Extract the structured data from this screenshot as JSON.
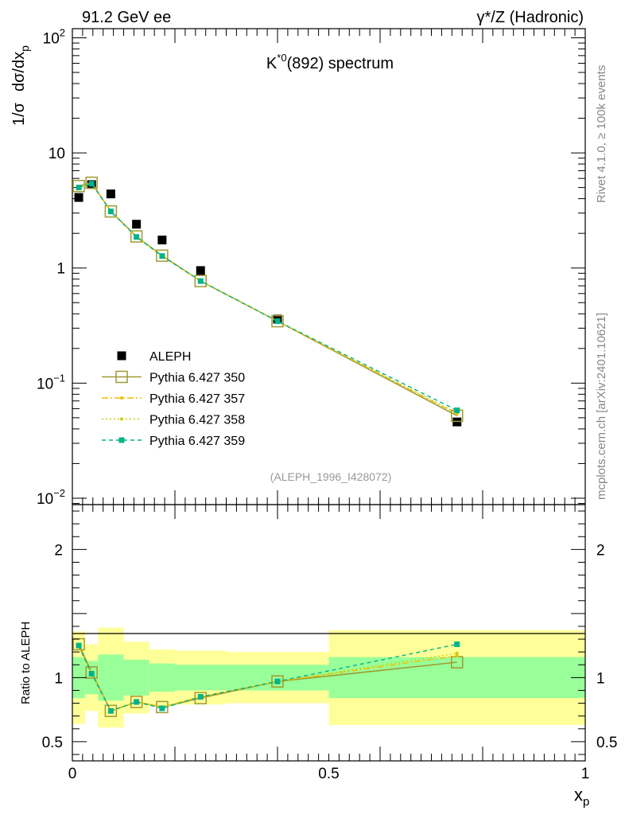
{
  "header": {
    "left_label": "91.2 GeV ee",
    "right_label": "γ*/Z (Hadronic)",
    "side_label_top": "Rivet 4.1.0, ≥ 100k events",
    "side_label_bottom": "mcplots.cern.ch [arXiv:2401.10621]"
  },
  "colors": {
    "data": "#000000",
    "mc350": "#a09a33",
    "mc357": "#f0c000",
    "mc358": "#cccc00",
    "mc359": "#00b38a",
    "band_inner": "#99ff99",
    "band_outer": "#ffff99"
  },
  "chart_data": [
    {
      "type": "scatter",
      "title": "K*0(892) spectrum",
      "title_main": "K",
      "title_sup": "*0",
      "title_rest": "(892) spectrum",
      "ylabel": "1/σ  dσ/dx_p",
      "ylabel_parts": {
        "a": "1/σ",
        "b": "dσ/dx",
        "sub": "p"
      },
      "yscale": "log",
      "ylim": [
        0.0088,
        120
      ],
      "xlim": [
        0,
        1
      ],
      "yticks": [
        {
          "value": 100,
          "base": "10",
          "exp": "2"
        },
        {
          "value": 10,
          "base": "10",
          "exp": ""
        },
        {
          "value": 1,
          "base": "1",
          "exp": ""
        },
        {
          "value": 0.1,
          "base": "10",
          "exp": "−1"
        },
        {
          "value": 0.01,
          "base": "10",
          "exp": "−2"
        }
      ],
      "watermark": "(ALEPH_1996_I428072)",
      "legend_position": "lower-left",
      "series": [
        {
          "name": "ALEPH",
          "style": "data",
          "x": [
            0.0125,
            0.0375,
            0.075,
            0.125,
            0.175,
            0.25,
            0.4,
            0.75
          ],
          "y": [
            4.1,
            5.3,
            4.4,
            2.4,
            1.75,
            0.95,
            0.36,
            0.046
          ]
        },
        {
          "name": "Pythia 6.427 350",
          "style": "solid-open-square",
          "x": [
            0.0125,
            0.0375,
            0.075,
            0.125,
            0.175,
            0.25,
            0.4,
            0.75
          ],
          "y": [
            5.15,
            5.5,
            3.1,
            1.88,
            1.28,
            0.77,
            0.345,
            0.052
          ]
        },
        {
          "name": "Pythia 6.427 357",
          "style": "dashdot",
          "x": [
            0.0125,
            0.0375,
            0.075,
            0.125,
            0.175,
            0.25,
            0.4,
            0.75
          ],
          "y": [
            5.05,
            5.45,
            3.1,
            1.87,
            1.27,
            0.77,
            0.345,
            0.054
          ]
        },
        {
          "name": "Pythia 6.427 358",
          "style": "dotted",
          "x": [
            0.0125,
            0.0375,
            0.075,
            0.125,
            0.175,
            0.25,
            0.4,
            0.75
          ],
          "y": [
            5.05,
            5.45,
            3.1,
            1.87,
            1.27,
            0.77,
            0.345,
            0.055
          ]
        },
        {
          "name": "Pythia 6.427 359",
          "style": "dashed-filled-square",
          "x": [
            0.0125,
            0.0375,
            0.075,
            0.125,
            0.175,
            0.25,
            0.4,
            0.75
          ],
          "y": [
            5.0,
            5.4,
            3.1,
            1.86,
            1.27,
            0.77,
            0.345,
            0.058
          ]
        }
      ]
    },
    {
      "type": "line",
      "ylabel": "Ratio to ALEPH",
      "xlabel": "x_p",
      "xlabel_parts": {
        "main": "x",
        "sub": "p"
      },
      "ylim": [
        0.35,
        2.35
      ],
      "xlim": [
        0,
        1
      ],
      "yticks": [
        {
          "value": 0.5,
          "label": "0.5"
        },
        {
          "value": 1,
          "label": "1"
        },
        {
          "value": 2,
          "label": "2"
        }
      ],
      "xticks": [
        {
          "value": 0,
          "label": "0"
        },
        {
          "value": 0.5,
          "label": "0.5"
        },
        {
          "value": 1,
          "label": "1"
        }
      ],
      "bins": [
        {
          "x0": 0.0,
          "x1": 0.025,
          "inner": [
            0.84,
            1.16
          ],
          "outer": [
            0.64,
            1.36
          ]
        },
        {
          "x0": 0.025,
          "x1": 0.05,
          "inner": [
            0.87,
            1.13
          ],
          "outer": [
            0.74,
            1.26
          ]
        },
        {
          "x0": 0.05,
          "x1": 0.1,
          "inner": [
            0.82,
            1.18
          ],
          "outer": [
            0.61,
            1.39
          ]
        },
        {
          "x0": 0.1,
          "x1": 0.15,
          "inner": [
            0.86,
            1.14
          ],
          "outer": [
            0.72,
            1.28
          ]
        },
        {
          "x0": 0.15,
          "x1": 0.2,
          "inner": [
            0.89,
            1.11
          ],
          "outer": [
            0.78,
            1.22
          ]
        },
        {
          "x0": 0.2,
          "x1": 0.3,
          "inner": [
            0.9,
            1.1
          ],
          "outer": [
            0.79,
            1.21
          ]
        },
        {
          "x0": 0.3,
          "x1": 0.5,
          "inner": [
            0.9,
            1.1
          ],
          "outer": [
            0.8,
            1.2
          ]
        },
        {
          "x0": 0.5,
          "x1": 1.0,
          "inner": [
            0.84,
            1.16
          ],
          "outer": [
            0.63,
            1.37
          ]
        }
      ],
      "series": [
        {
          "name": "Pythia 6.427 350",
          "style": "solid-open-square",
          "x": [
            0.0125,
            0.0375,
            0.075,
            0.125,
            0.175,
            0.25,
            0.4,
            0.75
          ],
          "y": [
            1.26,
            1.04,
            0.74,
            0.81,
            0.77,
            0.84,
            0.97,
            1.12
          ]
        },
        {
          "name": "Pythia 6.427 357",
          "style": "dashdot",
          "x": [
            0.0125,
            0.0375,
            0.075,
            0.125,
            0.175,
            0.25,
            0.4,
            0.75
          ],
          "y": [
            1.24,
            1.03,
            0.74,
            0.81,
            0.77,
            0.85,
            0.97,
            1.17
          ]
        },
        {
          "name": "Pythia 6.427 358",
          "style": "dotted",
          "x": [
            0.0125,
            0.0375,
            0.075,
            0.125,
            0.175,
            0.25,
            0.4,
            0.75
          ],
          "y": [
            1.24,
            1.03,
            0.74,
            0.81,
            0.77,
            0.85,
            0.97,
            1.19
          ]
        },
        {
          "name": "Pythia 6.427 359",
          "style": "dashed-filled-square",
          "x": [
            0.0125,
            0.0375,
            0.075,
            0.125,
            0.175,
            0.25,
            0.4,
            0.75
          ],
          "y": [
            1.25,
            1.03,
            0.74,
            0.81,
            0.76,
            0.85,
            0.97,
            1.26
          ]
        }
      ]
    }
  ]
}
